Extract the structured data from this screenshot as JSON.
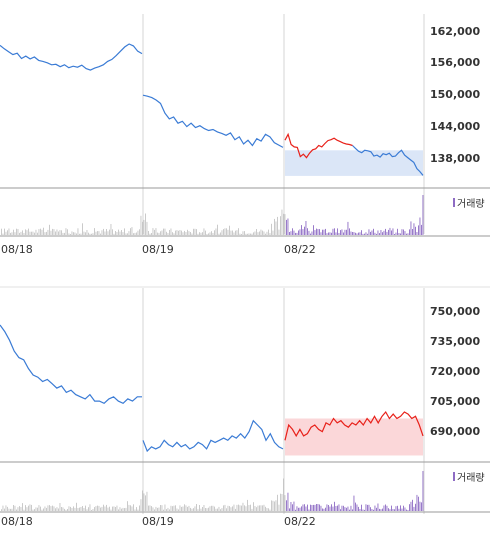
{
  "colors": {
    "line_down": "#3a7bd5",
    "line_up": "#e8211a",
    "shade_blue": "#dbe6f7",
    "shade_red": "#fbd7d9",
    "vol_gray": "#c4c4c4",
    "vol_purple": "#8e6cc4",
    "grid": "#d6d6d6",
    "axis": "#9a9a9a"
  },
  "volume_label": "거래량",
  "chart_data": [
    {
      "type": "line",
      "title": "",
      "x_labels": [
        "08/18",
        "08/19",
        "08/22"
      ],
      "y_ticks": [
        "162,000",
        "156,000",
        "150,000",
        "144,000",
        "138,000"
      ],
      "ylim": [
        131000,
        167000
      ],
      "shaded_band": [
        133500,
        138800
      ],
      "sessions": [
        {
          "date": "08/18",
          "color": "down",
          "values": [
            160500,
            159800,
            159200,
            158600,
            158900,
            157800,
            158300,
            157700,
            158100,
            157400,
            157200,
            156900,
            156500,
            156600,
            156100,
            156500,
            155900,
            156200,
            156000,
            156400,
            155700,
            155400,
            155800,
            156100,
            156500,
            157200,
            157600,
            158400,
            159300,
            160200,
            160800,
            160400,
            159300,
            158800
          ]
        },
        {
          "date": "08/19",
          "color": "down",
          "values": [
            150200,
            150000,
            149700,
            149200,
            148500,
            146500,
            145300,
            145700,
            144400,
            144800,
            143700,
            144400,
            143500,
            143900,
            143300,
            142900,
            143100,
            142600,
            142300,
            141900,
            142400,
            141000,
            141600,
            140100,
            140900,
            139800,
            141200,
            140700,
            142100,
            141600,
            140400,
            139900,
            139400
          ]
        },
        {
          "date": "08/22",
          "color": "mixed",
          "red_until": 22,
          "values": [
            140900,
            142100,
            140000,
            139500,
            139400,
            137500,
            138000,
            137300,
            138200,
            138900,
            139100,
            139800,
            139500,
            140200,
            140800,
            141000,
            141300,
            140900,
            140600,
            140300,
            140100,
            140000,
            139800,
            139200,
            138600,
            138300,
            138800,
            138700,
            138500,
            137600,
            137800,
            137400,
            138100,
            137900,
            138200,
            137500,
            137600,
            138300,
            138800,
            137800,
            137300,
            136800,
            136300,
            135000,
            134400,
            133600
          ]
        }
      ]
    },
    {
      "type": "line",
      "title": "",
      "x_labels": [
        "08/18",
        "08/19",
        "08/22"
      ],
      "y_ticks": [
        "750,000",
        "735,000",
        "720,000",
        "705,000",
        "690,000"
      ],
      "ylim": [
        680000,
        760000
      ],
      "shaded_band": [
        683000,
        700000
      ],
      "sessions": [
        {
          "date": "08/18",
          "color": "down",
          "values": [
            743000,
            740000,
            736000,
            731000,
            728000,
            727000,
            723000,
            720000,
            719000,
            717000,
            718000,
            716000,
            714000,
            715000,
            712000,
            713000,
            711000,
            710000,
            709000,
            711000,
            708000,
            708000,
            707000,
            709000,
            710000,
            708000,
            707000,
            709000,
            708000,
            710000,
            710000
          ]
        },
        {
          "date": "08/19",
          "color": "down",
          "values": [
            690000,
            685000,
            687000,
            686000,
            687000,
            690000,
            688000,
            687000,
            689000,
            687000,
            688000,
            686000,
            687000,
            689000,
            688000,
            686000,
            690000,
            689000,
            690000,
            691000,
            690000,
            692000,
            691000,
            693000,
            691000,
            694000,
            699000,
            697000,
            695000,
            690000,
            693000,
            689000,
            687000,
            686000
          ]
        },
        {
          "date": "08/22",
          "color": "up",
          "values": [
            690000,
            697000,
            695000,
            692000,
            695000,
            692000,
            693000,
            696000,
            697000,
            695000,
            694000,
            698000,
            697000,
            700000,
            698000,
            699000,
            697000,
            696000,
            698000,
            697000,
            699000,
            697000,
            700000,
            698000,
            701000,
            698000,
            701000,
            703000,
            700000,
            702000,
            700000,
            701000,
            703000,
            702000,
            700000,
            701000,
            697000,
            692000
          ]
        }
      ]
    }
  ]
}
